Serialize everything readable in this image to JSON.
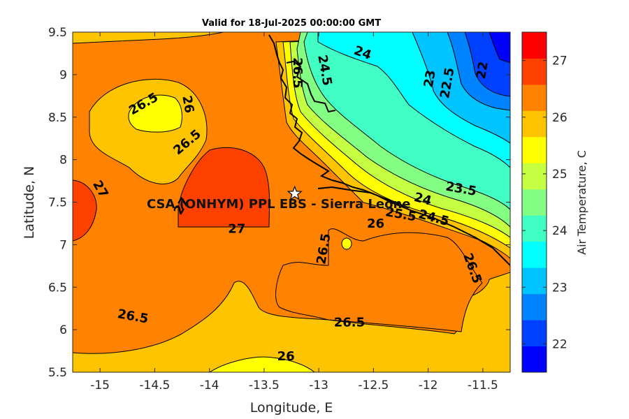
{
  "title": "Valid for 18-Jul-2025 00:00:00 GMT",
  "site_label": "CSA (ONHYM) PPL EBS - Sierra Leone",
  "site_marker": {
    "lon": -13.22,
    "lat": 7.6
  },
  "axes": {
    "xlabel": "Longitude, E",
    "ylabel": "Latitude, N",
    "xlim": [
      -15.25,
      -11.25
    ],
    "ylim": [
      5.5,
      9.5
    ],
    "xticks": [
      -15,
      -14.5,
      -14,
      -13.5,
      -13,
      -12.5,
      -12,
      -11.5
    ],
    "xtick_labels": [
      "-15",
      "-14.5",
      "-14",
      "-13.5",
      "-13",
      "-12.5",
      "-12",
      "-11.5"
    ],
    "yticks": [
      5.5,
      6,
      6.5,
      7,
      7.5,
      8,
      8.5,
      9,
      9.5
    ],
    "ytick_labels": [
      "5.5",
      "6",
      "6.5",
      "7",
      "7.5",
      "8",
      "8.5",
      "9",
      "9.5"
    ]
  },
  "colorbar": {
    "label": "Air Temperature, C",
    "range": [
      21.5,
      27.5
    ],
    "ticks": [
      22,
      23,
      24,
      25,
      26,
      27
    ],
    "tick_labels": [
      "22",
      "23",
      "24",
      "25",
      "26",
      "27"
    ],
    "colors": [
      "#0000ff",
      "#0041ff",
      "#0083ff",
      "#00c4ff",
      "#00ffff",
      "#41ffc4",
      "#83ff83",
      "#c4ff41",
      "#ffff00",
      "#ffc400",
      "#ff8300",
      "#ff4100",
      "#ff0000"
    ]
  },
  "contour_labels": [
    {
      "text": "26.5",
      "lon": -14.6,
      "lat": 8.65,
      "rot": -30
    },
    {
      "text": "26",
      "lon": -14.2,
      "lat": 8.65,
      "rot": 80
    },
    {
      "text": "26.5",
      "lon": -14.2,
      "lat": 8.2,
      "rot": -40
    },
    {
      "text": "27",
      "lon": -15.0,
      "lat": 7.65,
      "rot": 60
    },
    {
      "text": "27",
      "lon": -14.25,
      "lat": 7.45,
      "rot": -60
    },
    {
      "text": "27",
      "lon": -13.75,
      "lat": 7.18,
      "rot": 0
    },
    {
      "text": "26.5",
      "lon": -13.2,
      "lat": 9.02,
      "rot": 90
    },
    {
      "text": "26.5",
      "lon": -12.95,
      "lat": 6.95,
      "rot": -80
    },
    {
      "text": "24.5",
      "lon": -12.95,
      "lat": 9.05,
      "rot": 80
    },
    {
      "text": "24",
      "lon": -12.6,
      "lat": 9.25,
      "rot": 20
    },
    {
      "text": "23",
      "lon": -11.98,
      "lat": 8.95,
      "rot": -80
    },
    {
      "text": "22.5",
      "lon": -11.82,
      "lat": 8.9,
      "rot": -80
    },
    {
      "text": "22",
      "lon": -11.5,
      "lat": 9.05,
      "rot": -80
    },
    {
      "text": "23.5",
      "lon": -11.7,
      "lat": 7.65,
      "rot": 10
    },
    {
      "text": "24",
      "lon": -12.05,
      "lat": 7.53,
      "rot": 15
    },
    {
      "text": "24.5",
      "lon": -11.95,
      "lat": 7.31,
      "rot": 15
    },
    {
      "text": "25.5",
      "lon": -12.25,
      "lat": 7.35,
      "rot": 10
    },
    {
      "text": "26",
      "lon": -12.48,
      "lat": 7.24,
      "rot": 0
    },
    {
      "text": "26.5",
      "lon": -11.6,
      "lat": 6.72,
      "rot": 70
    },
    {
      "text": "26.5",
      "lon": -14.7,
      "lat": 6.15,
      "rot": 10
    },
    {
      "text": "26.5",
      "lon": -12.72,
      "lat": 6.08,
      "rot": 0
    },
    {
      "text": "26",
      "lon": -13.3,
      "lat": 5.68,
      "rot": 0
    }
  ]
}
